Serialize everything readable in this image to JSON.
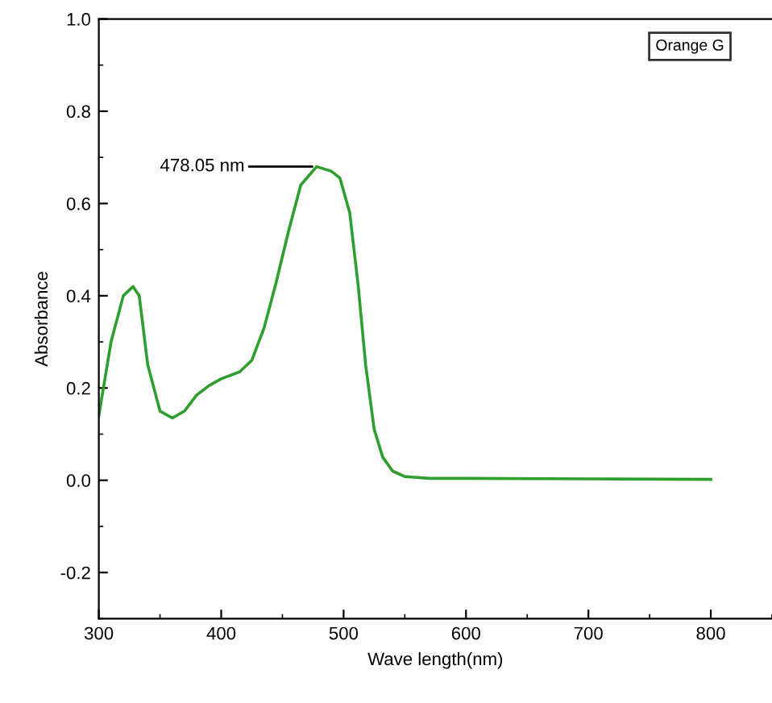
{
  "chart_data": {
    "type": "line",
    "xlabel": "Wave length(nm)",
    "ylabel": "Absorbance",
    "xlim": [
      300,
      850
    ],
    "xticks": [
      300,
      400,
      500,
      600,
      700,
      800
    ],
    "ylim": [
      -0.3,
      1.0
    ],
    "yticks": [
      -0.2,
      {
        "value": 0,
        "label": "0.0"
      },
      0.2,
      0.4,
      0.6,
      0.8,
      {
        "value": 1,
        "label": "1.0"
      }
    ],
    "grid": false,
    "legend": "top right",
    "marker": "none",
    "line_style": "solid",
    "annotations": [
      {
        "text": "478.05 nm",
        "x": 478,
        "y": 0.68
      }
    ],
    "series": [
      {
        "name": "Orange G",
        "color": "#2e9e2e",
        "x": [
          300,
          310,
          320,
          328,
          333,
          340,
          350,
          360,
          370,
          380,
          390,
          400,
          415,
          425,
          435,
          445,
          455,
          465,
          478,
          490,
          497,
          505,
          512,
          518,
          525,
          532,
          540,
          550,
          570,
          600,
          700,
          800
        ],
        "values": [
          0.14,
          0.3,
          0.4,
          0.42,
          0.4,
          0.25,
          0.15,
          0.135,
          0.15,
          0.185,
          0.205,
          0.22,
          0.235,
          0.26,
          0.33,
          0.43,
          0.54,
          0.64,
          0.68,
          0.67,
          0.655,
          0.58,
          0.42,
          0.25,
          0.11,
          0.05,
          0.02,
          0.008,
          0.004,
          0.004,
          0.003,
          0.002
        ]
      }
    ]
  }
}
